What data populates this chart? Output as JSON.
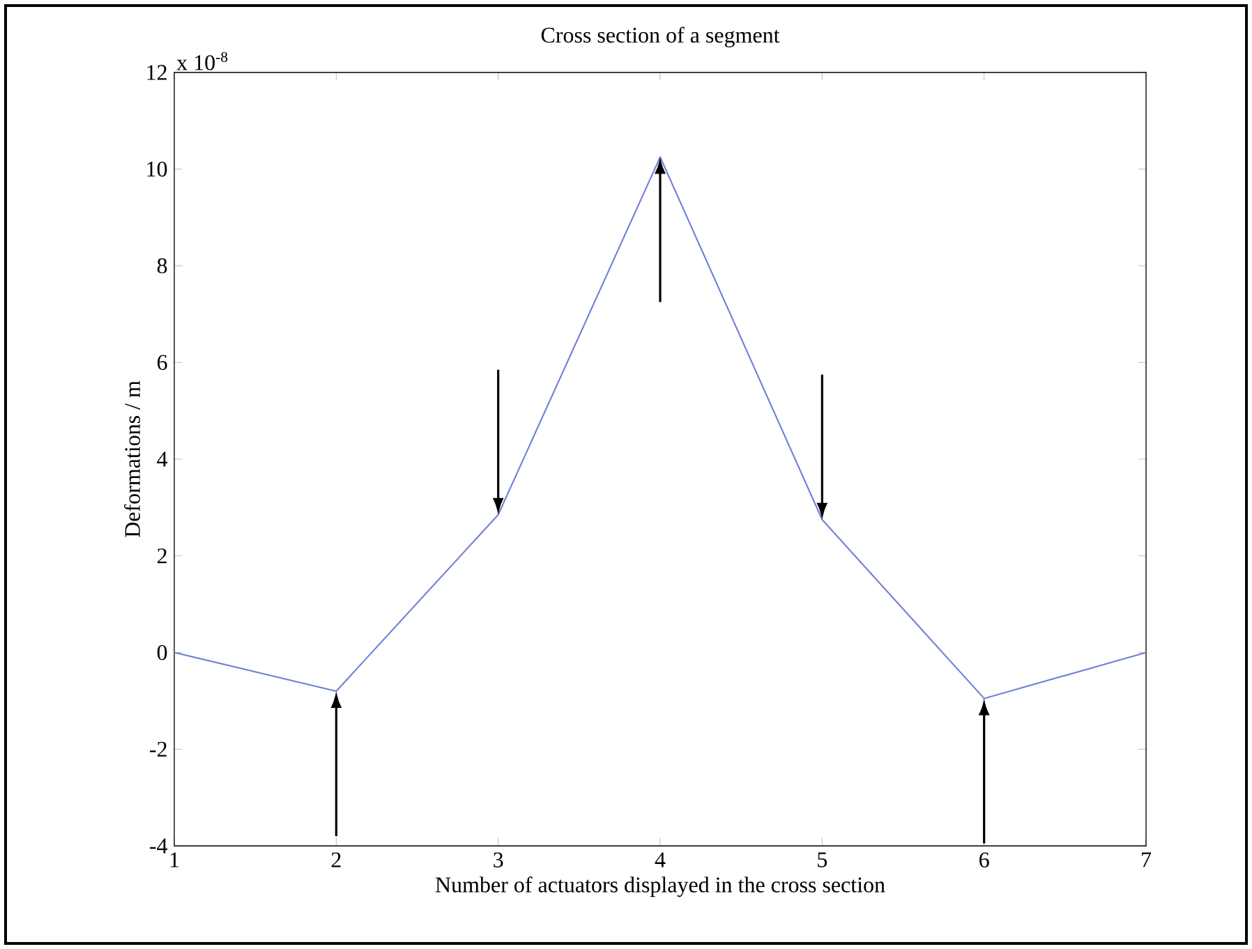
{
  "chart_data": {
    "type": "line",
    "title": "Cross section of a segment",
    "xlabel": "Number of actuators displayed in the cross section",
    "ylabel": "Deformations / m",
    "annotations": [
      "x 10$^{-8}$"
    ],
    "x": [
      1,
      2,
      3,
      4,
      5,
      6,
      7
    ],
    "series": [
      {
        "color": "#7080d8",
        "values": [
          0.0,
          -0.8,
          2.85,
          10.25,
          2.75,
          -0.95,
          0.0
        ]
      }
    ],
    "xlim": [
      1,
      7
    ],
    "xticks": [
      1,
      2,
      3,
      4,
      5,
      6,
      7
    ],
    "ylim": [
      -4,
      12
    ],
    "yticks": [
      -4,
      -2,
      0,
      2,
      4,
      6,
      8,
      10,
      12
    ],
    "marker": "none",
    "line_style": "solid"
  }
}
